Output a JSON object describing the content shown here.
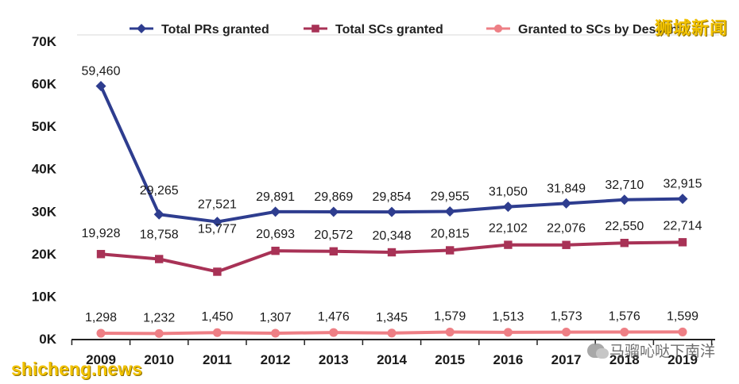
{
  "chart_data": {
    "type": "line",
    "title": "",
    "xlabel": "",
    "ylabel": "",
    "categories": [
      "2009",
      "2010",
      "2011",
      "2012",
      "2013",
      "2014",
      "2015",
      "2016",
      "2017",
      "2018",
      "2019"
    ],
    "ylim": [
      0,
      70000
    ],
    "yticks": [
      0,
      10000,
      20000,
      30000,
      40000,
      50000,
      60000,
      70000
    ],
    "ytick_labels": [
      "0K",
      "10K",
      "20K",
      "30K",
      "40K",
      "50K",
      "60K",
      "70K"
    ],
    "legend_position": "top",
    "series": [
      {
        "name": "Total PRs granted",
        "color": "#2e3d8f",
        "marker": "diamond",
        "values": [
          59460,
          29265,
          27521,
          29891,
          29869,
          29854,
          29955,
          31050,
          31849,
          32710,
          32915
        ],
        "labels": [
          "59,460",
          "29,265",
          "27,521",
          "29,891",
          "29,869",
          "29,854",
          "29,955",
          "31,050",
          "31,849",
          "32,710",
          "32,915"
        ]
      },
      {
        "name": "Total SCs granted",
        "color": "#a83256",
        "marker": "square",
        "values": [
          19928,
          18758,
          15777,
          20693,
          20572,
          20348,
          20815,
          22102,
          22076,
          22550,
          22714
        ],
        "labels": [
          "19,928",
          "18,758",
          "15,777",
          "20,693",
          "20,572",
          "20,348",
          "20,815",
          "22,102",
          "22,076",
          "22,550",
          "22,714"
        ]
      },
      {
        "name": "Granted to SCs by Descent",
        "color": "#ee7f85",
        "marker": "circle",
        "values": [
          1298,
          1232,
          1450,
          1307,
          1476,
          1345,
          1579,
          1513,
          1573,
          1576,
          1599
        ],
        "labels": [
          "1,298",
          "1,232",
          "1,450",
          "1,307",
          "1,476",
          "1,345",
          "1,579",
          "1,513",
          "1,573",
          "1,576",
          "1,599"
        ]
      }
    ]
  },
  "watermarks": {
    "top_right": "狮城新闻",
    "bottom_left": "shicheng.news",
    "bottom_right": "马骝吣哒下南洋"
  }
}
